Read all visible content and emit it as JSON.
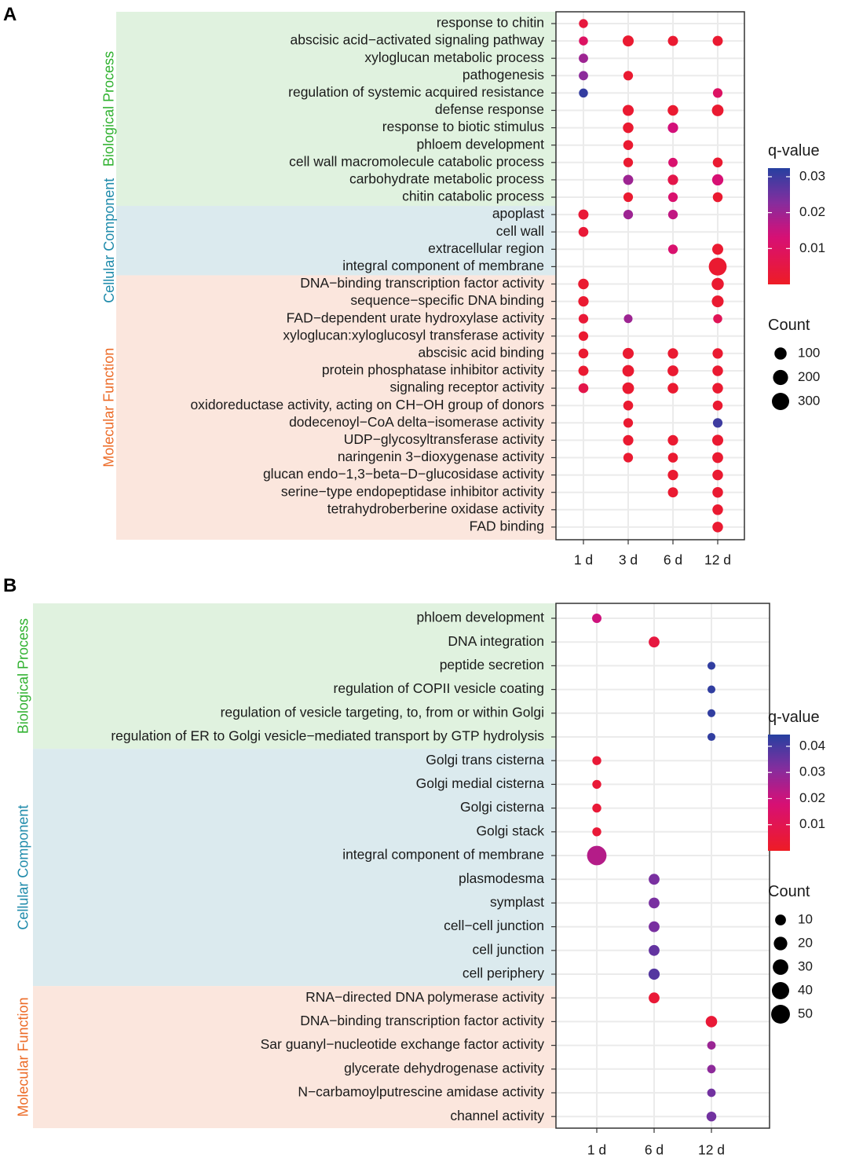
{
  "chart_data": [
    {
      "panel_label": "A",
      "type": "dot",
      "x_categories": [
        "1 d",
        "3 d",
        "6 d",
        "12 d"
      ],
      "groups": [
        {
          "name": "Biological Process",
          "color": "#2fb12f",
          "bg": "#e0f2df"
        },
        {
          "name": "Cellular Component",
          "color": "#1f8bab",
          "bg": "#dbeaee"
        },
        {
          "name": "Molecular Function",
          "color": "#ec6b27",
          "bg": "#fbe6dd"
        }
      ],
      "terms": [
        {
          "label": "response to chitin",
          "group": 0
        },
        {
          "label": "abscisic acid−activated signaling pathway",
          "group": 0
        },
        {
          "label": "xyloglucan metabolic process",
          "group": 0
        },
        {
          "label": "pathogenesis",
          "group": 0
        },
        {
          "label": "regulation of systemic acquired resistance",
          "group": 0
        },
        {
          "label": "defense response",
          "group": 0
        },
        {
          "label": "response to biotic stimulus",
          "group": 0
        },
        {
          "label": "phloem development",
          "group": 0
        },
        {
          "label": "cell wall macromolecule catabolic process",
          "group": 0
        },
        {
          "label": "carbohydrate metabolic process",
          "group": 0
        },
        {
          "label": "chitin catabolic process",
          "group": 0
        },
        {
          "label": "apoplast",
          "group": 1
        },
        {
          "label": "cell wall",
          "group": 1
        },
        {
          "label": "extracellular region",
          "group": 1
        },
        {
          "label": "integral component of membrane",
          "group": 1
        },
        {
          "label": "DNA−binding transcription factor activity",
          "group": 2
        },
        {
          "label": "sequence−specific DNA binding",
          "group": 2
        },
        {
          "label": "FAD−dependent urate hydroxylase activity",
          "group": 2
        },
        {
          "label": "xyloglucan:xyloglucosyl transferase activity",
          "group": 2
        },
        {
          "label": "abscisic acid binding",
          "group": 2
        },
        {
          "label": "protein phosphatase inhibitor activity",
          "group": 2
        },
        {
          "label": "signaling receptor activity",
          "group": 2
        },
        {
          "label": "oxidoreductase activity, acting on CH−OH group of donors",
          "group": 2
        },
        {
          "label": "dodecenoyl−CoA delta−isomerase activity",
          "group": 2
        },
        {
          "label": "UDP−glycosyltransferase activity",
          "group": 2
        },
        {
          "label": "naringenin 3−dioxygenase activity",
          "group": 2
        },
        {
          "label": "glucan endo−1,3−beta−D−glucosidase activity",
          "group": 2
        },
        {
          "label": "serine−type endopeptidase inhibitor activity",
          "group": 2
        },
        {
          "label": "tetrahydroberberine oxidase activity",
          "group": 2
        },
        {
          "label": "FAD binding",
          "group": 2
        }
      ],
      "points": [
        [
          0,
          0,
          30,
          0.004
        ],
        [
          1,
          0,
          30,
          0.01
        ],
        [
          2,
          0,
          35,
          0.02
        ],
        [
          3,
          0,
          35,
          0.022
        ],
        [
          4,
          0,
          30,
          0.031
        ],
        [
          11,
          0,
          50,
          0.003
        ],
        [
          12,
          0,
          45,
          0.003
        ],
        [
          15,
          0,
          60,
          0.002
        ],
        [
          16,
          0,
          55,
          0.002
        ],
        [
          17,
          0,
          40,
          0.003
        ],
        [
          18,
          0,
          40,
          0.002
        ],
        [
          19,
          0,
          45,
          0.002
        ],
        [
          20,
          0,
          50,
          0.002
        ],
        [
          21,
          0,
          45,
          0.006
        ],
        [
          1,
          1,
          70,
          0.002
        ],
        [
          3,
          1,
          40,
          0.002
        ],
        [
          5,
          1,
          70,
          0.002
        ],
        [
          6,
          1,
          60,
          0.002
        ],
        [
          7,
          1,
          45,
          0.002
        ],
        [
          8,
          1,
          40,
          0.002
        ],
        [
          9,
          1,
          50,
          0.02
        ],
        [
          10,
          1,
          40,
          0.002
        ],
        [
          11,
          1,
          40,
          0.02
        ],
        [
          17,
          1,
          25,
          0.02
        ],
        [
          19,
          1,
          70,
          0.002
        ],
        [
          20,
          1,
          85,
          0.002
        ],
        [
          21,
          1,
          85,
          0.002
        ],
        [
          22,
          1,
          45,
          0.002
        ],
        [
          23,
          1,
          40,
          0.002
        ],
        [
          24,
          1,
          55,
          0.002
        ],
        [
          25,
          1,
          40,
          0.002
        ],
        [
          1,
          2,
          50,
          0.002
        ],
        [
          5,
          2,
          60,
          0.002
        ],
        [
          6,
          2,
          55,
          0.014
        ],
        [
          8,
          2,
          35,
          0.012
        ],
        [
          9,
          2,
          55,
          0.006
        ],
        [
          10,
          2,
          40,
          0.012
        ],
        [
          11,
          2,
          40,
          0.016
        ],
        [
          13,
          2,
          40,
          0.012
        ],
        [
          19,
          2,
          55,
          0.002
        ],
        [
          20,
          2,
          65,
          0.002
        ],
        [
          21,
          2,
          60,
          0.002
        ],
        [
          24,
          2,
          55,
          0.002
        ],
        [
          25,
          2,
          45,
          0.002
        ],
        [
          26,
          2,
          55,
          0.002
        ],
        [
          27,
          2,
          50,
          0.002
        ],
        [
          1,
          3,
          50,
          0.002
        ],
        [
          4,
          3,
          40,
          0.01
        ],
        [
          5,
          3,
          85,
          0.002
        ],
        [
          8,
          3,
          45,
          0.002
        ],
        [
          9,
          3,
          75,
          0.013
        ],
        [
          10,
          3,
          45,
          0.002
        ],
        [
          13,
          3,
          70,
          0.002
        ],
        [
          14,
          3,
          330,
          0.002
        ],
        [
          15,
          3,
          100,
          0.002
        ],
        [
          16,
          3,
          90,
          0.002
        ],
        [
          17,
          3,
          30,
          0.008
        ],
        [
          19,
          3,
          55,
          0.002
        ],
        [
          20,
          3,
          60,
          0.002
        ],
        [
          21,
          3,
          60,
          0.002
        ],
        [
          22,
          3,
          45,
          0.002
        ],
        [
          23,
          3,
          40,
          0.03
        ],
        [
          24,
          3,
          70,
          0.002
        ],
        [
          25,
          3,
          65,
          0.002
        ],
        [
          26,
          3,
          60,
          0.002
        ],
        [
          27,
          3,
          60,
          0.002
        ],
        [
          28,
          3,
          60,
          0.002
        ],
        [
          29,
          3,
          60,
          0.002
        ]
      ],
      "legend": {
        "color_title": "q-value",
        "color_ticks": [
          0.01,
          0.02,
          0.03
        ],
        "color_tick_labels": [
          "0.01",
          "0.02",
          "0.03"
        ],
        "color_range": [
          0.0,
          0.0324
        ],
        "size_title": "Count",
        "size_values": [
          100,
          200,
          300
        ],
        "size_labels": [
          "100",
          "200",
          "300"
        ],
        "size_max": 340
      }
    },
    {
      "panel_label": "B",
      "type": "dot",
      "x_categories": [
        "1 d",
        "6 d",
        "12 d"
      ],
      "groups": [
        {
          "name": "Biological Process",
          "color": "#2fb12f",
          "bg": "#e0f2df"
        },
        {
          "name": "Cellular Component",
          "color": "#1f8bab",
          "bg": "#dbeaee"
        },
        {
          "name": "Molecular Function",
          "color": "#ec6b27",
          "bg": "#fbe6dd"
        }
      ],
      "terms": [
        {
          "label": "phloem development",
          "group": 0
        },
        {
          "label": "DNA integration",
          "group": 0
        },
        {
          "label": "peptide secretion",
          "group": 0
        },
        {
          "label": "regulation of COPII vesicle coating",
          "group": 0
        },
        {
          "label": "regulation of vesicle targeting, to, from or within Golgi",
          "group": 0
        },
        {
          "label": "regulation of ER to Golgi vesicle−mediated transport by GTP hydrolysis",
          "group": 0
        },
        {
          "label": "Golgi trans cisterna",
          "group": 1
        },
        {
          "label": "Golgi medial cisterna",
          "group": 1
        },
        {
          "label": "Golgi cisterna",
          "group": 1
        },
        {
          "label": "Golgi stack",
          "group": 1
        },
        {
          "label": "integral component of membrane",
          "group": 1
        },
        {
          "label": "plasmodesma",
          "group": 1
        },
        {
          "label": "symplast",
          "group": 1
        },
        {
          "label": "cell−cell junction",
          "group": 1
        },
        {
          "label": "cell junction",
          "group": 1
        },
        {
          "label": "cell periphery",
          "group": 1
        },
        {
          "label": "RNA−directed DNA polymerase activity",
          "group": 2
        },
        {
          "label": "DNA−binding transcription factor activity",
          "group": 2
        },
        {
          "label": "Sar guanyl−nucleotide exchange factor activity",
          "group": 2
        },
        {
          "label": "glycerate dehydrogenase activity",
          "group": 2
        },
        {
          "label": "N−carbamoylputrescine amidase activity",
          "group": 2
        },
        {
          "label": "channel activity",
          "group": 2
        }
      ],
      "points": [
        [
          0,
          0,
          6,
          0.02
        ],
        [
          6,
          0,
          5,
          0.004
        ],
        [
          7,
          0,
          5,
          0.004
        ],
        [
          8,
          0,
          5,
          0.004
        ],
        [
          9,
          0,
          5,
          0.004
        ],
        [
          10,
          0,
          55,
          0.024
        ],
        [
          1,
          1,
          10,
          0.006
        ],
        [
          11,
          1,
          10,
          0.033
        ],
        [
          12,
          1,
          10,
          0.033
        ],
        [
          13,
          1,
          10,
          0.033
        ],
        [
          14,
          1,
          10,
          0.036
        ],
        [
          15,
          1,
          11,
          0.038
        ],
        [
          16,
          1,
          10,
          0.004
        ],
        [
          2,
          2,
          3,
          0.043
        ],
        [
          3,
          2,
          3,
          0.043
        ],
        [
          4,
          2,
          3,
          0.043
        ],
        [
          5,
          2,
          3,
          0.043
        ],
        [
          17,
          2,
          12,
          0.004
        ],
        [
          18,
          2,
          4,
          0.028
        ],
        [
          19,
          2,
          4,
          0.03
        ],
        [
          20,
          2,
          4,
          0.034
        ],
        [
          21,
          2,
          7,
          0.034
        ]
      ],
      "legend": {
        "color_title": "q-value",
        "color_ticks": [
          0.01,
          0.02,
          0.03,
          0.04
        ],
        "color_tick_labels": [
          "0.01",
          "0.02",
          "0.03",
          "0.04"
        ],
        "color_range": [
          0.0,
          0.0445
        ],
        "size_title": "Count",
        "size_values": [
          10,
          20,
          30,
          40,
          50
        ],
        "size_labels": [
          "10",
          "20",
          "30",
          "40",
          "50"
        ],
        "size_max": 56
      }
    }
  ]
}
